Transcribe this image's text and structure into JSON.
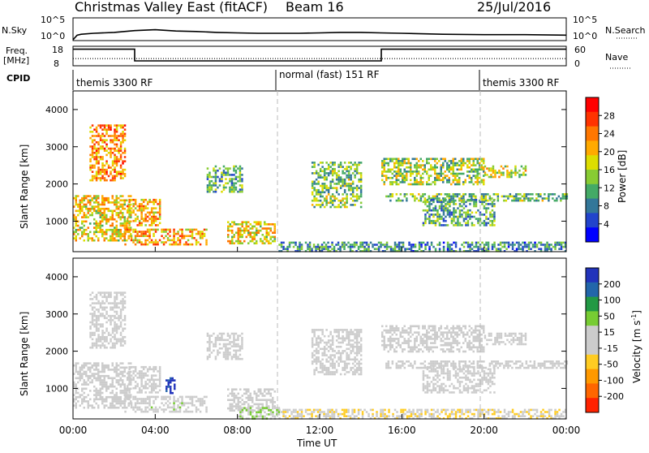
{
  "header": {
    "title": "Christmas Valley East (fitACF)",
    "beam": "Beam 16",
    "date": "25/Jul/2016"
  },
  "nsky_panel": {
    "left_label": "N.Sky",
    "right_label": "N.Search",
    "ticks": [
      "10^5",
      "10^0"
    ]
  },
  "freq_panel": {
    "left_label_top": "Freq.",
    "left_label_bottom": "[MHz]",
    "right_label": "Nave",
    "left_ticks": [
      "18",
      "8"
    ],
    "right_ticks": [
      "60",
      "0"
    ]
  },
  "cpid_panel": {
    "label": "CPID",
    "segments": [
      "themis 3300 RF",
      "normal (fast) 151 RF",
      "themis 3300 RF"
    ]
  },
  "colorbars": {
    "power": {
      "label": "Power [dB]",
      "ticks": [
        "28",
        "24",
        "20",
        "16",
        "12",
        "8",
        "4"
      ],
      "colors": [
        "#ff0000",
        "#ff3300",
        "#ff7700",
        "#ffaa00",
        "#dddd00",
        "#88cc33",
        "#44aa66",
        "#337799",
        "#2244cc",
        "#0000ff"
      ]
    },
    "velocity": {
      "label_main": "Velocity [m s",
      "label_sup": "-1",
      "label_end": "]",
      "ticks": [
        "200",
        "100",
        "50",
        "15",
        "-15",
        "-50",
        "-100",
        "-200"
      ],
      "colors": [
        "#2233bb",
        "#2266aa",
        "#229944",
        "#77cc33",
        "#cccccc",
        "#cccccc",
        "#ffcc22",
        "#ff9900",
        "#ff6600",
        "#ff2200"
      ]
    }
  },
  "axes": {
    "ylabel": "Slant Range [km]",
    "xlabel": "Time UT",
    "yticks": [
      "4000",
      "3000",
      "2000",
      "1000"
    ],
    "xticks": [
      "00:00",
      "04:00",
      "08:00",
      "12:00",
      "16:00",
      "20:00",
      "00:00"
    ]
  },
  "chart_data": [
    {
      "type": "line",
      "name": "nsky",
      "x_hours": [
        0,
        0.2,
        0.4,
        1,
        2,
        3,
        4,
        5,
        6,
        7,
        8,
        9,
        10,
        11,
        12,
        13,
        14,
        15,
        16,
        18,
        20,
        22,
        24
      ],
      "y_log10": [
        0.2,
        1.2,
        1.4,
        1.6,
        1.8,
        2.2,
        2.4,
        2.1,
        2.0,
        1.8,
        1.7,
        1.6,
        1.6,
        1.6,
        1.7,
        1.8,
        1.8,
        1.7,
        1.6,
        1.4,
        1.3,
        1.3,
        1.2
      ],
      "ylim": [
        0,
        5
      ]
    },
    {
      "type": "line",
      "name": "frequency",
      "x_hours": [
        0,
        3.0,
        3.0,
        15.0,
        15.0,
        24
      ],
      "y_mhz": [
        16.5,
        16.5,
        10.5,
        10.5,
        16.5,
        16.5
      ],
      "ylim": [
        8,
        18
      ]
    },
    {
      "type": "line",
      "name": "nave",
      "x_hours": [
        0,
        24
      ],
      "y": [
        22,
        22
      ],
      "ylim": [
        0,
        60
      ]
    },
    {
      "type": "heatmap",
      "name": "power",
      "x_range_hours": [
        0,
        24
      ],
      "y_range_km": [
        180,
        4500
      ],
      "z_range_db": [
        0,
        30
      ],
      "regions": [
        {
          "t": [
            0.0,
            2.8
          ],
          "r": [
            500,
            1700
          ],
          "z": 18
        },
        {
          "t": [
            0.8,
            2.5
          ],
          "r": [
            2100,
            3600
          ],
          "z": 22
        },
        {
          "t": [
            2.6,
            4.2
          ],
          "r": [
            900,
            1600
          ],
          "z": 20
        },
        {
          "t": [
            2.5,
            6.5
          ],
          "r": [
            350,
            800
          ],
          "z": 20
        },
        {
          "t": [
            6.5,
            8.2
          ],
          "r": [
            1800,
            2500
          ],
          "z": 10
        },
        {
          "t": [
            7.5,
            9.8
          ],
          "r": [
            400,
            1000
          ],
          "z": 18
        },
        {
          "t": [
            10.0,
            24.0
          ],
          "r": [
            180,
            450
          ],
          "z": 8
        },
        {
          "t": [
            11.6,
            14.0
          ],
          "r": [
            1400,
            2600
          ],
          "z": 12
        },
        {
          "t": [
            15.0,
            20.0
          ],
          "r": [
            2000,
            2700
          ],
          "z": 14
        },
        {
          "t": [
            15.2,
            24.0
          ],
          "r": [
            1550,
            1750
          ],
          "z": 12
        },
        {
          "t": [
            17.0,
            20.5
          ],
          "r": [
            900,
            1600
          ],
          "z": 10
        },
        {
          "t": [
            20.0,
            22.0
          ],
          "r": [
            2200,
            2500
          ],
          "z": 16
        }
      ]
    },
    {
      "type": "heatmap",
      "name": "velocity",
      "x_range_hours": [
        0,
        24
      ],
      "y_range_km": [
        180,
        4500
      ],
      "z_range_ms": [
        -200,
        200
      ],
      "regions": [
        {
          "t": [
            0.0,
            2.8
          ],
          "r": [
            500,
            1700
          ],
          "v": 0
        },
        {
          "t": [
            0.8,
            2.5
          ],
          "r": [
            2100,
            3600
          ],
          "v": 0
        },
        {
          "t": [
            2.6,
            4.2
          ],
          "r": [
            900,
            1600
          ],
          "v": 0
        },
        {
          "t": [
            2.5,
            6.5
          ],
          "r": [
            350,
            800
          ],
          "v": 30
        },
        {
          "t": [
            4.5,
            4.9
          ],
          "r": [
            900,
            1300
          ],
          "v": 180
        },
        {
          "t": [
            6.5,
            8.2
          ],
          "r": [
            1800,
            2500
          ],
          "v": 0
        },
        {
          "t": [
            7.5,
            9.8
          ],
          "r": [
            400,
            1000
          ],
          "v": 0
        },
        {
          "t": [
            8.0,
            10.0
          ],
          "r": [
            200,
            500
          ],
          "v": 40
        },
        {
          "t": [
            10.0,
            24.0
          ],
          "r": [
            180,
            450
          ],
          "v": -40
        },
        {
          "t": [
            11.6,
            14.0
          ],
          "r": [
            1400,
            2600
          ],
          "v": 0
        },
        {
          "t": [
            15.0,
            20.0
          ],
          "r": [
            2000,
            2700
          ],
          "v": 0
        },
        {
          "t": [
            15.2,
            24.0
          ],
          "r": [
            1550,
            1750
          ],
          "v": 0
        },
        {
          "t": [
            17.0,
            20.5
          ],
          "r": [
            900,
            1600
          ],
          "v": 0
        },
        {
          "t": [
            20.0,
            22.0
          ],
          "r": [
            2200,
            2500
          ],
          "v": 0
        }
      ]
    }
  ]
}
